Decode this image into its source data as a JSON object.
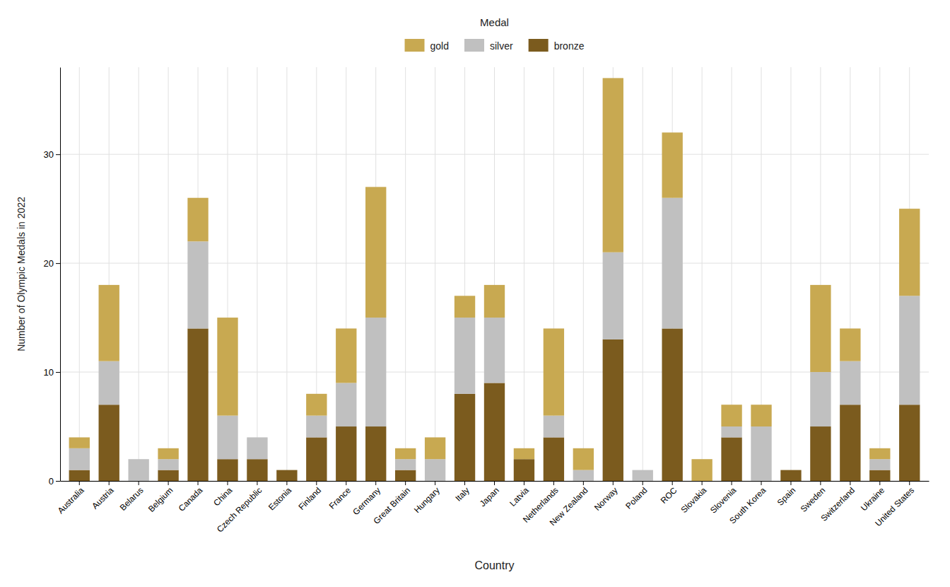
{
  "chart_data": {
    "type": "bar",
    "stacked": true,
    "grid": true,
    "legend": "top",
    "legend_title": "Medal",
    "xlabel": "Country",
    "ylabel": "Number of Olympic Medals in 2022",
    "categories": [
      "Australia",
      "Austria",
      "Belarus",
      "Belgium",
      "Canada",
      "China",
      "Czech Republic",
      "Estonia",
      "Finland",
      "France",
      "Germany",
      "Great Britain",
      "Hungary",
      "Italy",
      "Japan",
      "Latvia",
      "Netherlands",
      "New Zealand",
      "Norway",
      "Poland",
      "ROC",
      "Slovakia",
      "Slovenia",
      "South Korea",
      "Spain",
      "Sweden",
      "Switzerland",
      "Ukraine",
      "United States"
    ],
    "series": [
      {
        "name": "bronze",
        "color": "#7B5B1E",
        "values": [
          1,
          7,
          0,
          1,
          14,
          2,
          2,
          1,
          4,
          5,
          5,
          1,
          0,
          8,
          9,
          2,
          4,
          0,
          13,
          0,
          14,
          0,
          4,
          0,
          1,
          5,
          7,
          1,
          7
        ]
      },
      {
        "name": "silver",
        "color": "#C0C0C0",
        "values": [
          2,
          4,
          2,
          1,
          8,
          4,
          2,
          0,
          2,
          4,
          10,
          1,
          2,
          7,
          6,
          0,
          2,
          1,
          8,
          1,
          12,
          0,
          1,
          5,
          0,
          5,
          4,
          1,
          10
        ]
      },
      {
        "name": "gold",
        "color": "#C8A951",
        "values": [
          1,
          7,
          0,
          1,
          4,
          9,
          0,
          0,
          2,
          5,
          12,
          1,
          2,
          2,
          3,
          1,
          8,
          2,
          16,
          0,
          6,
          2,
          2,
          2,
          0,
          8,
          3,
          1,
          8
        ]
      }
    ],
    "ylim": [
      0,
      38
    ],
    "yticks": [
      0,
      10,
      20,
      30
    ]
  }
}
